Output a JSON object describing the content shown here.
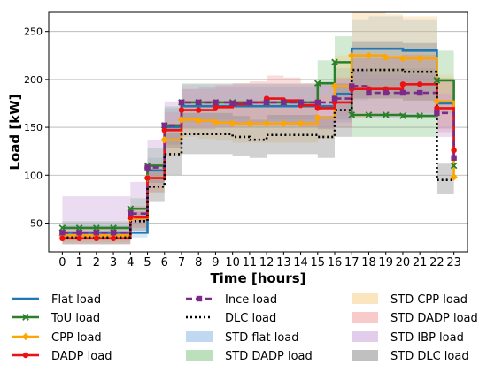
{
  "chart_data": {
    "type": "line",
    "step": true,
    "xlabel": "Time [hours]",
    "ylabel": "Load [kW]",
    "xlim": [
      -0.8,
      23.8
    ],
    "ylim": [
      20,
      270
    ],
    "xticks": [
      0,
      1,
      2,
      3,
      4,
      5,
      6,
      7,
      8,
      9,
      10,
      11,
      12,
      13,
      14,
      15,
      16,
      17,
      18,
      19,
      20,
      21,
      22,
      23
    ],
    "yticks": [
      50,
      100,
      150,
      200,
      250
    ],
    "grid_y": true,
    "legend_position": "below",
    "x": [
      0,
      1,
      2,
      3,
      4,
      5,
      6,
      7,
      8,
      9,
      10,
      11,
      12,
      13,
      14,
      15,
      16,
      17,
      18,
      19,
      20,
      21,
      22,
      23
    ],
    "series": [
      {
        "name": "Flat load",
        "color": "#1f77b4",
        "linestyle": "solid",
        "marker": "none",
        "values": [
          40,
          40,
          40,
          40,
          40,
          105,
          150,
          172,
          172,
          172,
          172,
          172,
          172,
          172,
          172,
          172,
          185,
          232,
          232,
          232,
          230,
          230,
          175,
          118
        ]
      },
      {
        "name": "ToU load",
        "color": "#2a7f2a",
        "linestyle": "solid",
        "marker": "x",
        "values": [
          45,
          45,
          45,
          45,
          65,
          110,
          152,
          176,
          176,
          176,
          176,
          176,
          176,
          176,
          176,
          196,
          218,
          163,
          163,
          163,
          162,
          162,
          199,
          110
        ]
      },
      {
        "name": "CPP load",
        "color": "#ffa500",
        "linestyle": "solid",
        "marker": "diamond",
        "values": [
          37,
          37,
          37,
          37,
          55,
          97,
          137,
          158,
          157,
          155,
          154,
          154,
          154,
          154,
          154,
          160,
          193,
          225,
          225,
          223,
          222,
          222,
          177,
          98
        ]
      },
      {
        "name": "DADP load",
        "color": "#ee1111",
        "linestyle": "solid",
        "marker": "circle",
        "values": [
          34,
          34,
          34,
          34,
          56,
          97,
          147,
          168,
          168,
          171,
          174,
          176,
          180,
          178,
          173,
          170,
          176,
          190,
          190,
          190,
          195,
          195,
          170,
          126
        ]
      },
      {
        "name": "Ince load",
        "color": "#7d2b8b",
        "linestyle": "dashed",
        "marker": "square",
        "values": [
          40,
          40,
          40,
          40,
          60,
          108,
          152,
          176,
          176,
          176,
          175,
          176,
          176,
          176,
          176,
          176,
          180,
          193,
          186,
          186,
          186,
          186,
          165,
          118
        ]
      },
      {
        "name": "DLC load",
        "color": "#000000",
        "linestyle": "dotted",
        "marker": "none",
        "values": [
          35,
          35,
          35,
          35,
          52,
          88,
          122,
          143,
          143,
          143,
          140,
          137,
          142,
          142,
          142,
          140,
          168,
          210,
          210,
          210,
          208,
          208,
          95,
          95
        ]
      }
    ],
    "bands": [
      {
        "name": "STD flat load",
        "color": "#6fa8dc",
        "opacity": 0.28,
        "lower": [
          33,
          33,
          33,
          33,
          35,
          92,
          132,
          155,
          155,
          155,
          152,
          152,
          152,
          152,
          152,
          148,
          158,
          178,
          185,
          185,
          185,
          185,
          148,
          95
        ],
        "upper": [
          48,
          48,
          48,
          48,
          48,
          118,
          170,
          190,
          192,
          192,
          192,
          192,
          192,
          192,
          192,
          196,
          212,
          262,
          266,
          266,
          262,
          262,
          202,
          132
        ]
      },
      {
        "name": "STD DADP load",
        "color": "#6ab96a",
        "opacity": 0.3,
        "lower": [
          38,
          38,
          38,
          38,
          52,
          92,
          128,
          158,
          158,
          158,
          158,
          158,
          158,
          158,
          158,
          172,
          182,
          140,
          140,
          140,
          140,
          140,
          165,
          92
        ],
        "upper": [
          52,
          52,
          52,
          52,
          76,
          128,
          172,
          196,
          196,
          196,
          196,
          196,
          196,
          196,
          196,
          220,
          245,
          210,
          212,
          212,
          212,
          212,
          230,
          130
        ]
      },
      {
        "name": "STD CPP load",
        "color": "#f5cc7f",
        "opacity": 0.35,
        "lower": [
          30,
          30,
          30,
          30,
          45,
          82,
          120,
          140,
          138,
          136,
          134,
          134,
          134,
          134,
          134,
          138,
          162,
          180,
          180,
          180,
          178,
          178,
          150,
          85
        ],
        "upper": [
          44,
          44,
          44,
          44,
          66,
          112,
          156,
          178,
          178,
          176,
          176,
          176,
          176,
          176,
          176,
          184,
          225,
          270,
          270,
          268,
          266,
          266,
          205,
          112
        ]
      },
      {
        "name": "STD DADP load",
        "color": "#f08a8a",
        "opacity": 0.3,
        "lower": [
          28,
          28,
          28,
          28,
          45,
          82,
          128,
          148,
          148,
          150,
          152,
          154,
          156,
          154,
          150,
          148,
          150,
          160,
          162,
          162,
          165,
          165,
          145,
          108
        ],
        "upper": [
          42,
          42,
          42,
          42,
          68,
          112,
          166,
          190,
          190,
          194,
          196,
          198,
          204,
          202,
          196,
          194,
          202,
          222,
          222,
          222,
          226,
          226,
          198,
          145
        ]
      },
      {
        "name": "STD IBP load",
        "color": "#c59bd8",
        "opacity": 0.35,
        "lower": [
          33,
          33,
          33,
          33,
          48,
          92,
          132,
          150,
          150,
          150,
          150,
          150,
          150,
          150,
          150,
          150,
          155,
          165,
          160,
          160,
          160,
          160,
          140,
          100
        ]
      },
      {
        "name": "STD DLC load",
        "color": "#8c8c8c",
        "opacity": 0.4,
        "lower": [
          28,
          28,
          28,
          28,
          42,
          72,
          100,
          122,
          122,
          122,
          120,
          118,
          122,
          122,
          122,
          118,
          140,
          180,
          180,
          180,
          178,
          178,
          80,
          78
        ],
        "upper": [
          42,
          42,
          42,
          42,
          62,
          104,
          144,
          165,
          165,
          165,
          162,
          158,
          163,
          163,
          163,
          162,
          196,
          240,
          240,
          240,
          238,
          238,
          112,
          112
        ]
      }
    ],
    "legend": {
      "columns": [
        [
          "Flat load",
          "ToU load",
          "CPP load",
          "DADP load"
        ],
        [
          "Ince load",
          "DLC load",
          "STD flat load",
          "STD DADP load"
        ],
        [
          "STD CPP load",
          "STD DADP load",
          "STD IBP load",
          "STD DLC load"
        ]
      ]
    }
  }
}
